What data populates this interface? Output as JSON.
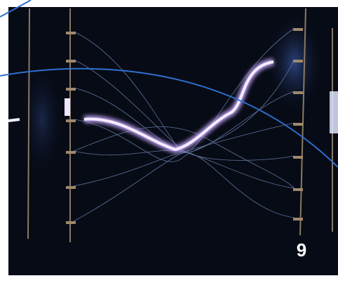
{
  "slide": {
    "number": "9"
  }
}
